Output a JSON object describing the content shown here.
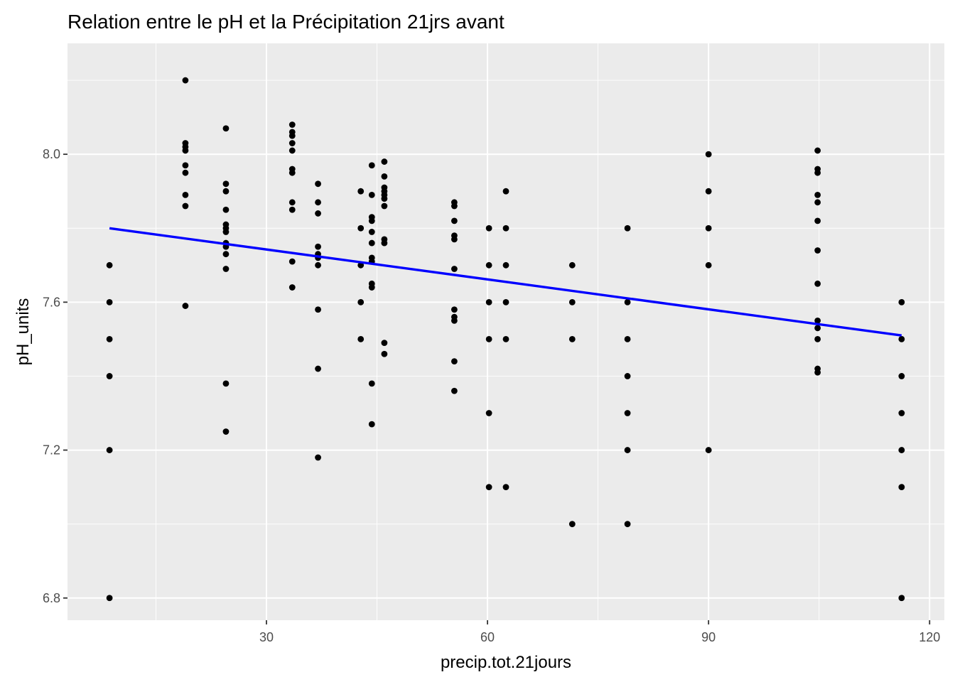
{
  "chart_data": {
    "type": "scatter",
    "title": "Relation entre le pH et la Précipitation 21jrs avant",
    "xlabel": "precip.tot.21jours",
    "ylabel": "pH_units",
    "xlim": [
      3,
      122
    ],
    "ylim": [
      6.74,
      8.3
    ],
    "x_ticks": [
      30,
      60,
      90,
      120
    ],
    "y_ticks": [
      6.8,
      7.2,
      7.6,
      8.0
    ],
    "x_tick_labels": [
      "30",
      "60",
      "90",
      "120"
    ],
    "y_tick_labels": [
      "6.8",
      "7.2",
      "7.6",
      "8.0"
    ],
    "grid": true,
    "legend": "none",
    "colors": {
      "panel": "#ebebeb",
      "grid_major": "#ffffff",
      "points": "#000000",
      "fit_line": "#0000ff"
    },
    "series": [
      {
        "type": "scatter",
        "points": [
          [
            8.7,
            7.7
          ],
          [
            8.7,
            7.6
          ],
          [
            8.7,
            7.5
          ],
          [
            8.7,
            7.4
          ],
          [
            8.7,
            7.2
          ],
          [
            8.7,
            6.8
          ],
          [
            19.0,
            8.2
          ],
          [
            19.0,
            8.03
          ],
          [
            19.0,
            8.02
          ],
          [
            19.0,
            8.01
          ],
          [
            19.0,
            7.97
          ],
          [
            19.0,
            7.95
          ],
          [
            19.0,
            7.89
          ],
          [
            19.0,
            7.86
          ],
          [
            19.0,
            7.59
          ],
          [
            24.5,
            8.07
          ],
          [
            24.5,
            7.92
          ],
          [
            24.5,
            7.9
          ],
          [
            24.5,
            7.85
          ],
          [
            24.5,
            7.81
          ],
          [
            24.5,
            7.8
          ],
          [
            24.5,
            7.79
          ],
          [
            24.5,
            7.76
          ],
          [
            24.5,
            7.75
          ],
          [
            24.5,
            7.73
          ],
          [
            24.5,
            7.69
          ],
          [
            24.5,
            7.38
          ],
          [
            24.5,
            7.25
          ],
          [
            33.5,
            8.08
          ],
          [
            33.5,
            8.06
          ],
          [
            33.5,
            8.05
          ],
          [
            33.5,
            8.03
          ],
          [
            33.5,
            8.01
          ],
          [
            33.5,
            7.96
          ],
          [
            33.5,
            7.95
          ],
          [
            33.5,
            7.87
          ],
          [
            33.5,
            7.85
          ],
          [
            33.5,
            7.71
          ],
          [
            33.5,
            7.64
          ],
          [
            37.0,
            7.92
          ],
          [
            37.0,
            7.87
          ],
          [
            37.0,
            7.84
          ],
          [
            37.0,
            7.75
          ],
          [
            37.0,
            7.73
          ],
          [
            37.0,
            7.72
          ],
          [
            37.0,
            7.7
          ],
          [
            37.0,
            7.58
          ],
          [
            37.0,
            7.42
          ],
          [
            37.0,
            7.18
          ],
          [
            42.8,
            7.9
          ],
          [
            42.8,
            7.8
          ],
          [
            42.8,
            7.7
          ],
          [
            42.8,
            7.6
          ],
          [
            42.8,
            7.5
          ],
          [
            44.3,
            7.97
          ],
          [
            44.3,
            7.89
          ],
          [
            44.3,
            7.83
          ],
          [
            44.3,
            7.82
          ],
          [
            44.3,
            7.79
          ],
          [
            44.3,
            7.76
          ],
          [
            44.3,
            7.72
          ],
          [
            44.3,
            7.71
          ],
          [
            44.3,
            7.65
          ],
          [
            44.3,
            7.64
          ],
          [
            44.3,
            7.38
          ],
          [
            44.3,
            7.27
          ],
          [
            46.0,
            7.98
          ],
          [
            46.0,
            7.94
          ],
          [
            46.0,
            7.91
          ],
          [
            46.0,
            7.9
          ],
          [
            46.0,
            7.89
          ],
          [
            46.0,
            7.88
          ],
          [
            46.0,
            7.86
          ],
          [
            46.0,
            7.77
          ],
          [
            46.0,
            7.76
          ],
          [
            46.0,
            7.49
          ],
          [
            46.0,
            7.46
          ],
          [
            55.5,
            7.87
          ],
          [
            55.5,
            7.86
          ],
          [
            55.5,
            7.82
          ],
          [
            55.5,
            7.78
          ],
          [
            55.5,
            7.77
          ],
          [
            55.5,
            7.69
          ],
          [
            55.5,
            7.58
          ],
          [
            55.5,
            7.56
          ],
          [
            55.5,
            7.55
          ],
          [
            55.5,
            7.44
          ],
          [
            55.5,
            7.36
          ],
          [
            60.2,
            7.8
          ],
          [
            60.2,
            7.7
          ],
          [
            60.2,
            7.6
          ],
          [
            60.2,
            7.5
          ],
          [
            60.2,
            7.3
          ],
          [
            60.2,
            7.1
          ],
          [
            62.5,
            7.9
          ],
          [
            62.5,
            7.8
          ],
          [
            62.5,
            7.7
          ],
          [
            62.5,
            7.6
          ],
          [
            62.5,
            7.5
          ],
          [
            62.5,
            7.1
          ],
          [
            71.5,
            7.7
          ],
          [
            71.5,
            7.6
          ],
          [
            71.5,
            7.5
          ],
          [
            71.5,
            7.0
          ],
          [
            79.0,
            7.8
          ],
          [
            79.0,
            7.6
          ],
          [
            79.0,
            7.5
          ],
          [
            79.0,
            7.4
          ],
          [
            79.0,
            7.3
          ],
          [
            79.0,
            7.2
          ],
          [
            79.0,
            7.0
          ],
          [
            90.0,
            8.0
          ],
          [
            90.0,
            7.9
          ],
          [
            90.0,
            7.8
          ],
          [
            90.0,
            7.7
          ],
          [
            90.0,
            7.2
          ],
          [
            104.8,
            8.01
          ],
          [
            104.8,
            7.96
          ],
          [
            104.8,
            7.95
          ],
          [
            104.8,
            7.89
          ],
          [
            104.8,
            7.87
          ],
          [
            104.8,
            7.82
          ],
          [
            104.8,
            7.74
          ],
          [
            104.8,
            7.65
          ],
          [
            104.8,
            7.55
          ],
          [
            104.8,
            7.53
          ],
          [
            104.8,
            7.5
          ],
          [
            104.8,
            7.42
          ],
          [
            104.8,
            7.41
          ],
          [
            116.2,
            7.6
          ],
          [
            116.2,
            7.5
          ],
          [
            116.2,
            7.4
          ],
          [
            116.2,
            7.3
          ],
          [
            116.2,
            7.2
          ],
          [
            116.2,
            7.1
          ],
          [
            116.2,
            6.8
          ]
        ]
      },
      {
        "type": "line",
        "points": [
          [
            8.7,
            7.8
          ],
          [
            116.2,
            7.51
          ]
        ]
      }
    ]
  }
}
